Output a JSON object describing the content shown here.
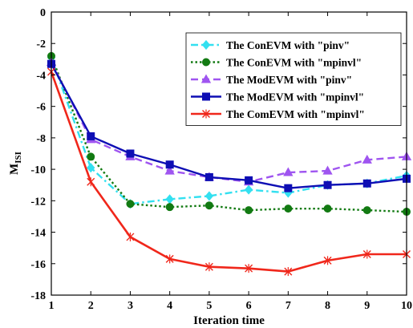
{
  "chart_data": {
    "type": "line",
    "title": "",
    "xlabel": "Iteration time",
    "ylabel_main": "M",
    "ylabel_sub": "ISI",
    "x": [
      1,
      2,
      3,
      4,
      5,
      6,
      7,
      8,
      9,
      10
    ],
    "xlim": [
      1,
      10
    ],
    "ylim": [
      -18,
      0
    ],
    "xticks": [
      "1",
      "2",
      "3",
      "4",
      "5",
      "6",
      "7",
      "8",
      "9",
      "10"
    ],
    "yticks": [
      0,
      -2,
      -4,
      -6,
      -8,
      -10,
      -12,
      -14,
      -16,
      -18
    ],
    "ytick_labels": [
      "0",
      "-2",
      "-4",
      "-6",
      "-8",
      "-10",
      "-12",
      "-14",
      "-16",
      "-18"
    ],
    "grid": false,
    "legend_position": "top-right",
    "series": [
      {
        "name": "The ConEVM with \"pinv\"",
        "color": "#33e0f0",
        "dash": "dashdot",
        "marker": "diamond",
        "values": [
          -2.9,
          -9.9,
          -12.2,
          -11.9,
          -11.7,
          -11.3,
          -11.5,
          -11.0,
          -10.9,
          -10.4
        ]
      },
      {
        "name": "The ConEVM with \"mpinvl\"",
        "color": "#127a12",
        "dash": "dotted",
        "marker": "circle",
        "values": [
          -2.8,
          -9.2,
          -12.2,
          -12.4,
          -12.3,
          -12.6,
          -12.5,
          -12.5,
          -12.6,
          -12.7
        ]
      },
      {
        "name": "The ModEVM with \"pinv\"",
        "color": "#9f55f0",
        "dash": "dashed",
        "marker": "triangle",
        "values": [
          -3.2,
          -8.1,
          -9.2,
          -10.1,
          -10.5,
          -10.8,
          -10.2,
          -10.1,
          -9.4,
          -9.2
        ]
      },
      {
        "name": "The ModEVM with \"mpinvl\"",
        "color": "#0e0eb4",
        "dash": "solid",
        "marker": "square",
        "values": [
          -3.3,
          -7.9,
          -9.0,
          -9.7,
          -10.5,
          -10.7,
          -11.2,
          -11.0,
          -10.9,
          -10.6
        ]
      },
      {
        "name": "The ComEVM with \"mpinvl\"",
        "color": "#f0271b",
        "dash": "solid",
        "marker": "x",
        "values": [
          -3.8,
          -10.8,
          -14.3,
          -15.7,
          -16.2,
          -16.3,
          -16.5,
          -15.8,
          -15.4,
          -15.4
        ]
      }
    ]
  }
}
